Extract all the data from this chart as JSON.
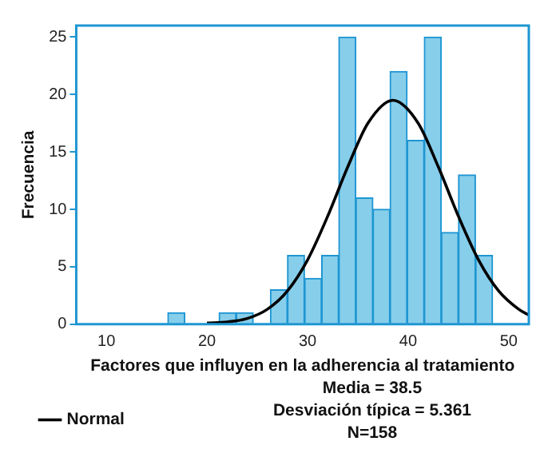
{
  "chart_data": {
    "type": "histogram",
    "xlabel": "Factores que influyen en la adherencia al tratamiento",
    "ylabel": "Frecuencia",
    "bins": [
      16.1,
      17.8,
      19.5,
      21.2,
      22.9,
      24.6,
      26.3,
      28.0,
      29.7,
      31.4,
      33.1,
      34.8,
      36.5,
      38.2,
      39.9,
      41.6,
      43.3,
      45.0,
      46.7,
      48.4
    ],
    "values": [
      1,
      0,
      0,
      1,
      1,
      0,
      3,
      6,
      4,
      6,
      25,
      11,
      10,
      22,
      16,
      25,
      8,
      13,
      6
    ],
    "color": "#87ceeb",
    "series": [
      {
        "name": "Normal",
        "type": "line",
        "color": "#000000",
        "x": [
          20,
          22,
          24,
          26,
          28,
          30,
          32,
          34,
          36,
          38.5,
          41,
          43,
          45,
          47,
          49,
          51,
          52
        ],
        "values": [
          0.1,
          0.2,
          0.5,
          1.3,
          2.9,
          5.6,
          9.4,
          13.7,
          17.5,
          19.5,
          17.5,
          13.7,
          9.4,
          5.6,
          2.9,
          1.3,
          0.8
        ]
      }
    ],
    "xlim": [
      7,
      52
    ],
    "xticks": [
      10,
      20,
      30,
      40,
      50
    ],
    "ylim": [
      0,
      26
    ],
    "yticks": [
      0,
      5,
      10,
      15,
      20,
      25
    ],
    "grid": false,
    "legend": "bottom left",
    "marker": "none",
    "line_style": "solid",
    "annotations": [
      "Media = 38.5",
      "Desviación típica = 5.361",
      "N=158"
    ]
  }
}
